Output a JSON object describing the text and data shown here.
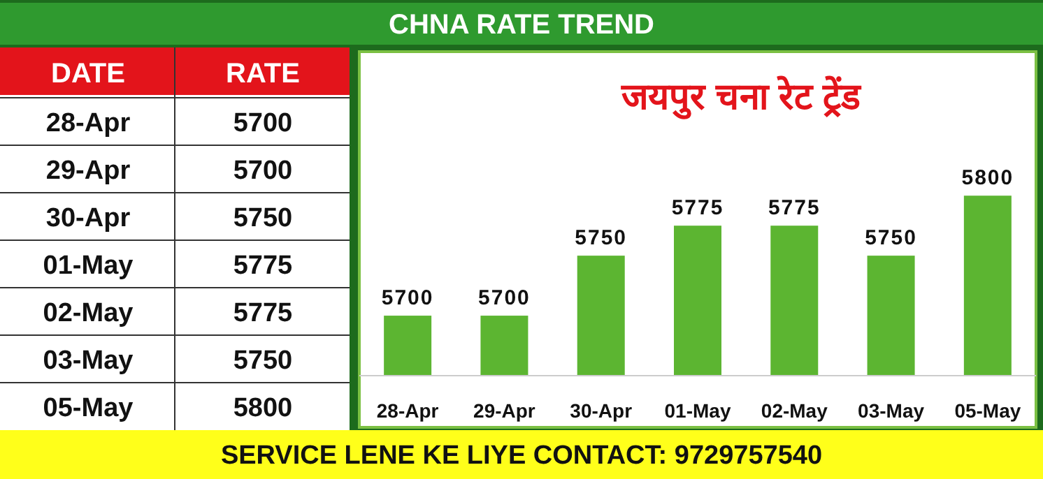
{
  "chart_data": [
    {
      "type": "other",
      "categories": [
        "28-Apr",
        "29-Apr",
        "30-Apr",
        "01-May",
        "02-May",
        "03-May",
        "05-May"
      ],
      "values": [
        5700,
        5700,
        5750,
        5775,
        5775,
        5750,
        5800
      ],
      "data_labels": true,
      "annotations": [
        "DATE",
        "RATE",
        "SERVICE LENE KE LIYE CONTACT: 9729757540"
      ]
    },
    {
      "type": "bar",
      "title": "CHNA RATE TREND",
      "subtitle": "जयपुर चना रेट ट्रेंड",
      "categories": [
        "28-Apr",
        "29-Apr",
        "30-Apr",
        "01-May",
        "02-May",
        "03-May",
        "05-May"
      ],
      "values": [
        5700,
        5700,
        5750,
        5775,
        5775,
        5750,
        5800
      ],
      "color": "#5cb531",
      "ylim": [
        5650,
        5920
      ],
      "data_labels": true,
      "tick_labels": "x"
    }
  ]
}
